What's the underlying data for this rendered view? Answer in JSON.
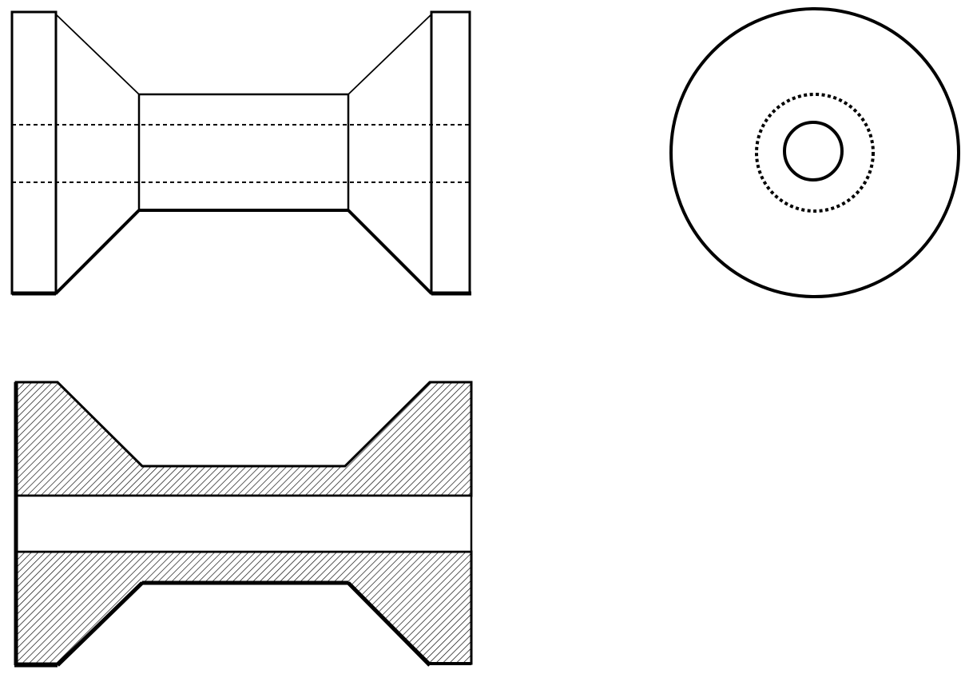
{
  "drawing": {
    "views": [
      {
        "id": "front-elevation",
        "hidden_lines": true
      },
      {
        "id": "end-view",
        "concentric_circles": 3,
        "inner_circle_style": "dashed"
      },
      {
        "id": "sectional-elevation",
        "hatched": true,
        "bore_open": true
      }
    ],
    "colors": {
      "ink": "#000000",
      "paper": "#ffffff"
    }
  }
}
